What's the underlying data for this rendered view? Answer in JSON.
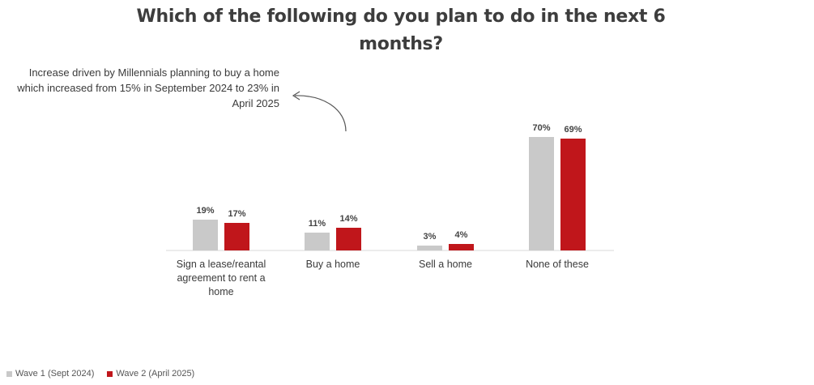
{
  "chart_data": {
    "type": "bar",
    "title": "Which of the following do you plan to do in the next 6 months?",
    "annotation": "Increase driven by Millennials planning to buy a home which increased from 15% in September 2024 to 23% in April 2025",
    "categories": [
      "Sign a lease/reantal agreement to rent a home",
      "Buy a home",
      "Sell a home",
      "None of these"
    ],
    "series": [
      {
        "name": "Wave 1 (Sept 2024)",
        "values": [
          19,
          11,
          3,
          70
        ],
        "labels": [
          "19%",
          "11%",
          "3%",
          "70%"
        ],
        "color": "#c9c9c9"
      },
      {
        "name": "Wave 2 (April 2025)",
        "values": [
          17,
          14,
          4,
          69
        ],
        "labels": [
          "17%",
          "14%",
          "4%",
          "69%"
        ],
        "color": "#c0161b"
      }
    ],
    "ylim": [
      0,
      100
    ],
    "grid": false,
    "legend_position": "bottom-left"
  }
}
